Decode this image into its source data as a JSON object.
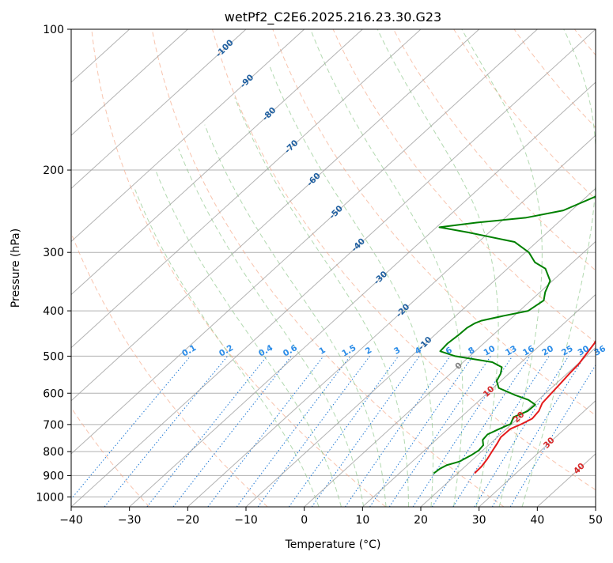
{
  "chart_data": {
    "type": "line",
    "title": "wetPf2_C2E6.2025.216.23.30.G23",
    "xlabel": "Temperature (°C)",
    "ylabel": "Pressure (hPa)",
    "xlim": [
      -40,
      50
    ],
    "ylim": [
      1050,
      100
    ],
    "y_scale": "log",
    "grid": true,
    "x_ticks": [
      "−40",
      "−30",
      "−20",
      "−10",
      "0",
      "10",
      "20",
      "30",
      "40",
      "50"
    ],
    "x_tick_values": [
      -40,
      -30,
      -20,
      -10,
      0,
      10,
      20,
      30,
      40,
      50
    ],
    "y_ticks": [
      "100",
      "200",
      "300",
      "400",
      "500",
      "600",
      "700",
      "800",
      "900",
      "1000"
    ],
    "y_tick_values": [
      100,
      200,
      300,
      400,
      500,
      600,
      700,
      800,
      900,
      1000
    ],
    "skew_lines": {
      "isotherm_labels": [
        "-100",
        "-90",
        "-80",
        "-70",
        "-60",
        "-50",
        "-40",
        "-30",
        "-20",
        "-10",
        "0",
        "10",
        "20",
        "30",
        "40"
      ],
      "isotherm_values": [
        -100,
        -90,
        -80,
        -70,
        -60,
        -50,
        -40,
        -30,
        -20,
        -10,
        0,
        10,
        20,
        30,
        40
      ],
      "mixing_ratio_labels": [
        "0.1",
        "0.2",
        "0.4",
        "0.6",
        "1",
        "1.5",
        "2",
        "3",
        "4",
        "6",
        "8",
        "10",
        "13",
        "16",
        "20",
        "25",
        "30",
        "36"
      ],
      "mixing_ratio_values": [
        0.1,
        0.2,
        0.4,
        0.6,
        1,
        1.5,
        2,
        3,
        4,
        6,
        8,
        10,
        13,
        16,
        20,
        25,
        30,
        36
      ],
      "dry_adiabats_theta_C": [
        -30,
        -10,
        10,
        30,
        50,
        70,
        90,
        110,
        130,
        150,
        170,
        190,
        210
      ],
      "moist_adiabats_C": [
        0,
        4,
        8,
        12,
        16,
        20,
        24,
        28,
        32,
        36
      ]
    },
    "series": [
      {
        "name": "temperature",
        "color": "#e41a1c",
        "points": [
          [
            22.9,
            890
          ],
          [
            22.8,
            860
          ],
          [
            22.4,
            830
          ],
          [
            21.8,
            800
          ],
          [
            21.2,
            770
          ],
          [
            20.6,
            745
          ],
          [
            20.7,
            715
          ],
          [
            21.7,
            698
          ],
          [
            22.5,
            680
          ],
          [
            22.2,
            655
          ],
          [
            21.3,
            630
          ],
          [
            21.0,
            600
          ],
          [
            20.7,
            570
          ],
          [
            20.4,
            545
          ],
          [
            20.2,
            520
          ],
          [
            19.6,
            495
          ],
          [
            19.0,
            470
          ],
          [
            18.0,
            445
          ],
          [
            16.6,
            420
          ],
          [
            15.6,
            390
          ],
          [
            15.0,
            370
          ],
          [
            13.6,
            350
          ],
          [
            12.4,
            330
          ],
          [
            11.5,
            310
          ],
          [
            10.0,
            285
          ],
          [
            8.6,
            265
          ],
          [
            7.0,
            245
          ],
          [
            5.4,
            225
          ],
          [
            3.6,
            205
          ],
          [
            1.6,
            185
          ],
          [
            0.1,
            170
          ],
          [
            -1.6,
            155
          ],
          [
            -2.4,
            148
          ],
          [
            -2.1,
            145
          ],
          [
            0.8,
            138
          ],
          [
            4.2,
            132
          ],
          [
            7.8,
            127
          ],
          [
            8.7,
            123
          ],
          [
            8.0,
            115
          ],
          [
            7.5,
            107
          ],
          [
            7.3,
            100
          ]
        ]
      },
      {
        "name": "dewpoint",
        "color": "#008000",
        "points": [
          [
            15.9,
            890
          ],
          [
            16.1,
            870
          ],
          [
            16.6,
            855
          ],
          [
            18.1,
            840
          ],
          [
            18.9,
            815
          ],
          [
            19.3,
            795
          ],
          [
            19.1,
            775
          ],
          [
            18.0,
            755
          ],
          [
            17.8,
            735
          ],
          [
            18.8,
            715
          ],
          [
            19.8,
            698
          ],
          [
            19.0,
            675
          ],
          [
            20.3,
            655
          ],
          [
            20.4,
            635
          ],
          [
            18.3,
            620
          ],
          [
            15.0,
            605
          ],
          [
            11.0,
            585
          ],
          [
            9.3,
            565
          ],
          [
            8.6,
            545
          ],
          [
            7.6,
            528
          ],
          [
            5.0,
            515
          ],
          [
            -2.5,
            500
          ],
          [
            -6.0,
            488
          ],
          [
            -6.2,
            470
          ],
          [
            -5.9,
            450
          ],
          [
            -5.8,
            435
          ],
          [
            -5.3,
            425
          ],
          [
            -4.7,
            420
          ],
          [
            -1.8,
            410
          ],
          [
            1.5,
            400
          ],
          [
            2.2,
            380
          ],
          [
            0.9,
            365
          ],
          [
            -0.4,
            345
          ],
          [
            -3.5,
            325
          ],
          [
            -6.5,
            315
          ],
          [
            -9.4,
            300
          ],
          [
            -13.8,
            285
          ],
          [
            -23.5,
            272
          ],
          [
            -29.5,
            265
          ],
          [
            -24.0,
            259
          ],
          [
            -16.5,
            253
          ],
          [
            -11.4,
            244
          ],
          [
            -8.5,
            228
          ],
          [
            -6.8,
            213
          ],
          [
            -4.7,
            200
          ],
          [
            -2.6,
            190
          ],
          [
            -1.7,
            178
          ],
          [
            -1.5,
            170
          ],
          [
            -1.6,
            160
          ],
          [
            -2.5,
            150
          ],
          [
            -3.3,
            140
          ],
          [
            -3.0,
            130
          ],
          [
            -5.6,
            125
          ],
          [
            -8.4,
            120
          ],
          [
            -8.1,
            116
          ],
          [
            -3.5,
            113
          ],
          [
            -0.6,
            107
          ],
          [
            -0.2,
            104
          ],
          [
            0.3,
            100
          ]
        ]
      }
    ]
  }
}
